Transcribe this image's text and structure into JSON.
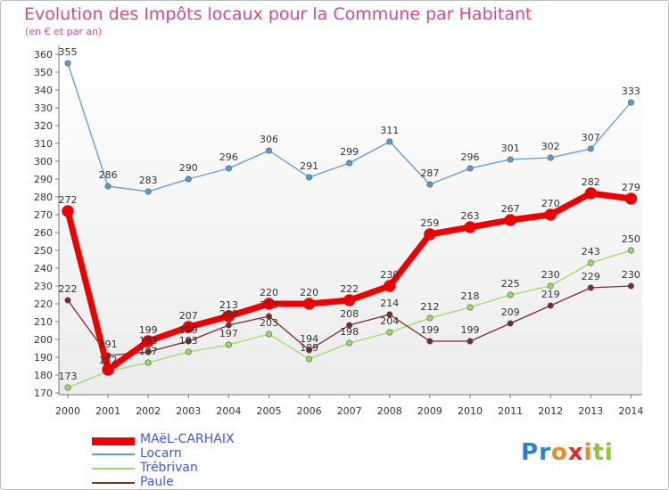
{
  "header": {
    "title": "Evolution des Impôts locaux pour la Commune par Habitant",
    "subtitle": "(en € et par an)"
  },
  "logo": {
    "text": "Proxiti"
  },
  "chart_data": {
    "type": "line",
    "title": "Evolution des Impôts locaux pour la Commune par Habitant",
    "subtitle": "(en € et par an)",
    "x": [
      "2000",
      "2001",
      "2002",
      "2003",
      "2004",
      "2005",
      "2006",
      "2007",
      "2008",
      "2009",
      "2010",
      "2011",
      "2012",
      "2013",
      "2014"
    ],
    "ylim": [
      170,
      360
    ],
    "yticks": [
      170,
      180,
      190,
      200,
      210,
      220,
      230,
      240,
      250,
      260,
      270,
      280,
      290,
      300,
      310,
      320,
      330,
      340,
      350,
      360
    ],
    "grid": false,
    "legend_position": "bottom-left",
    "series": [
      {
        "name": "MAëL-CARHAIX",
        "color": "#ee0000",
        "values": [
          272,
          183,
          199,
          207,
          213,
          220,
          220,
          222,
          230,
          259,
          263,
          267,
          270,
          282,
          279
        ],
        "labels": [
          "272",
          "",
          "199",
          "207",
          "213",
          "220",
          "220",
          "222",
          "230",
          "259",
          "263",
          "267",
          "270",
          "282",
          "279"
        ]
      },
      {
        "name": "Locarn",
        "color": "#5b9bd5",
        "values": [
          355,
          286,
          283,
          290,
          296,
          306,
          291,
          299,
          311,
          287,
          296,
          301,
          302,
          307,
          333
        ],
        "labels": [
          "355",
          "286",
          "283",
          "290",
          "296",
          "306",
          "291",
          "299",
          "311",
          "287",
          "296",
          "301",
          "302",
          "307",
          "333"
        ]
      },
      {
        "name": "Trébrivan",
        "color": "#99dd66",
        "values": [
          173,
          182,
          187,
          193,
          197,
          203,
          189,
          198,
          204,
          212,
          218,
          225,
          230,
          243,
          250
        ],
        "labels": [
          "173",
          "182",
          "187",
          "193",
          "197",
          "203",
          "189",
          "198",
          "204",
          "212",
          "218",
          "225",
          "230",
          "243",
          "250"
        ]
      },
      {
        "name": "Paule",
        "color": "#7a2a2a",
        "values": [
          222,
          191,
          193,
          199,
          208,
          213,
          194,
          208,
          214,
          199,
          199,
          209,
          219,
          229,
          230
        ],
        "labels": [
          "222",
          "191",
          "193",
          "199",
          "208",
          "213",
          "194",
          "208",
          "214",
          "199",
          "199",
          "209",
          "219",
          "229",
          "230"
        ]
      }
    ]
  }
}
